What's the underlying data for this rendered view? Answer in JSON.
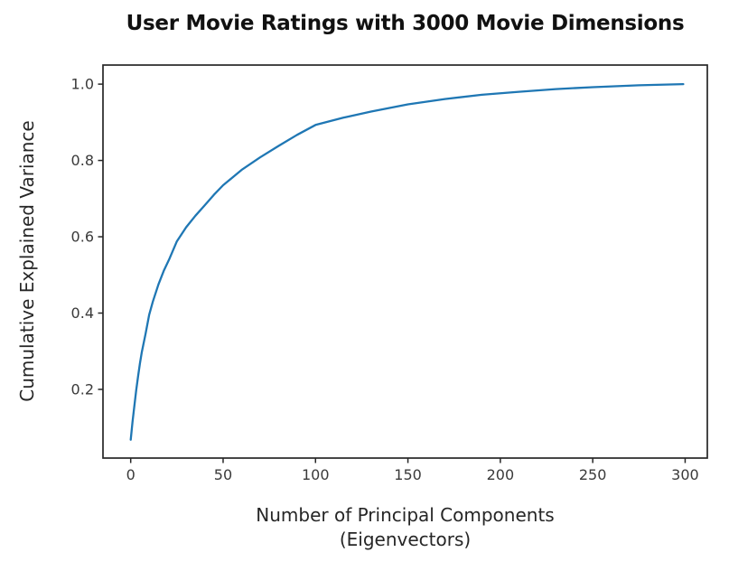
{
  "chart_data": {
    "type": "line",
    "title": "User Movie Ratings with 3000 Movie Dimensions",
    "xlabel": "Number of Principal Components (Eigenvectors)",
    "xlabel_lines": [
      "Number of Principal Components",
      "(Eigenvectors)"
    ],
    "ylabel": "Cumulative Explained Variance",
    "x_ticks": [
      0,
      50,
      100,
      150,
      200,
      250,
      300
    ],
    "y_ticks": [
      0.2,
      0.4,
      0.6,
      0.8,
      1.0
    ],
    "y_tick_labels": [
      "0.2",
      "0.4",
      "0.6",
      "0.8",
      "1.0"
    ],
    "xlim": [
      -15,
      312
    ],
    "ylim": [
      0.02,
      1.05
    ],
    "grid": false,
    "legend": "none",
    "line_color": "#1f77b4",
    "axis_color": "#262626",
    "tick_label_color": "#3a3a3a",
    "background_color": "#ffffff",
    "series": [
      {
        "name": "Cumulative Explained Variance",
        "points": [
          [
            0,
            0.068
          ],
          [
            1,
            0.115
          ],
          [
            2,
            0.158
          ],
          [
            3,
            0.198
          ],
          [
            4,
            0.235
          ],
          [
            5,
            0.268
          ],
          [
            6,
            0.298
          ],
          [
            8,
            0.345
          ],
          [
            10,
            0.395
          ],
          [
            12,
            0.43
          ],
          [
            15,
            0.475
          ],
          [
            18,
            0.512
          ],
          [
            21,
            0.543
          ],
          [
            25,
            0.588
          ],
          [
            30,
            0.625
          ],
          [
            35,
            0.655
          ],
          [
            40,
            0.682
          ],
          [
            45,
            0.71
          ],
          [
            50,
            0.735
          ],
          [
            60,
            0.775
          ],
          [
            70,
            0.808
          ],
          [
            80,
            0.838
          ],
          [
            90,
            0.867
          ],
          [
            100,
            0.893
          ],
          [
            115,
            0.912
          ],
          [
            130,
            0.928
          ],
          [
            150,
            0.947
          ],
          [
            170,
            0.961
          ],
          [
            190,
            0.972
          ],
          [
            210,
            0.98
          ],
          [
            230,
            0.987
          ],
          [
            250,
            0.992
          ],
          [
            275,
            0.997
          ],
          [
            299,
            1.0
          ]
        ]
      }
    ]
  }
}
